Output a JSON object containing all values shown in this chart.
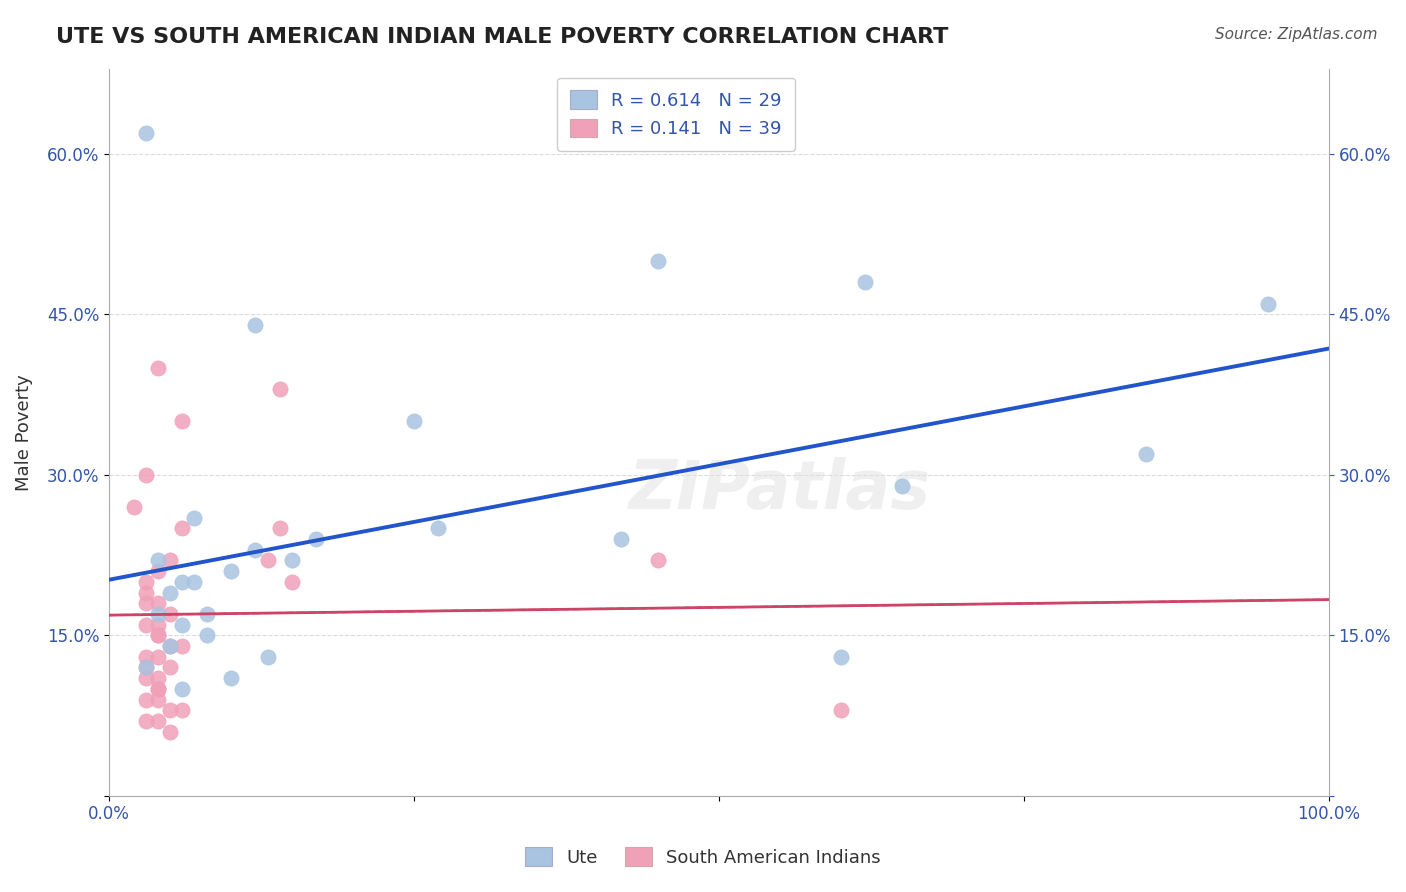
{
  "title": "UTE VS SOUTH AMERICAN INDIAN MALE POVERTY CORRELATION CHART",
  "source": "Source: ZipAtlas.com",
  "xlabel": "",
  "ylabel": "Male Poverty",
  "legend_labels": [
    "Ute",
    "South American Indians"
  ],
  "r_blue": 0.614,
  "n_blue": 29,
  "r_pink": 0.141,
  "n_pink": 39,
  "blue_color": "#a8c4e0",
  "pink_color": "#f0a0b8",
  "blue_line_color": "#2255cc",
  "pink_line_color": "#cc4466",
  "watermark": "ZIPatlas",
  "xlim": [
    0,
    1
  ],
  "ylim": [
    0,
    0.68
  ],
  "yticks": [
    0.0,
    0.15,
    0.3,
    0.45,
    0.6
  ],
  "ytick_labels": [
    "",
    "15.0%",
    "30.0%",
    "45.0%",
    "60.0%"
  ],
  "xticks": [
    0.0,
    0.25,
    0.5,
    0.75,
    1.0
  ],
  "xtick_labels": [
    "0.0%",
    "",
    "",
    "",
    "100.0%"
  ],
  "blue_x": [
    0.03,
    0.45,
    0.12,
    0.07,
    0.62,
    0.17,
    0.07,
    0.85,
    0.25,
    0.04,
    0.06,
    0.15,
    0.1,
    0.05,
    0.04,
    0.06,
    0.08,
    0.12,
    0.27,
    0.6,
    0.08,
    0.05,
    0.03,
    0.1,
    0.42,
    0.13,
    0.06,
    0.65,
    0.95
  ],
  "blue_y": [
    0.62,
    0.5,
    0.44,
    0.26,
    0.48,
    0.24,
    0.2,
    0.32,
    0.35,
    0.22,
    0.2,
    0.22,
    0.21,
    0.19,
    0.17,
    0.16,
    0.15,
    0.23,
    0.25,
    0.13,
    0.17,
    0.14,
    0.12,
    0.11,
    0.24,
    0.13,
    0.1,
    0.29,
    0.46
  ],
  "pink_x": [
    0.04,
    0.14,
    0.06,
    0.03,
    0.02,
    0.06,
    0.05,
    0.04,
    0.03,
    0.03,
    0.03,
    0.04,
    0.05,
    0.04,
    0.03,
    0.04,
    0.04,
    0.06,
    0.14,
    0.05,
    0.03,
    0.04,
    0.03,
    0.05,
    0.04,
    0.03,
    0.04,
    0.15,
    0.13,
    0.04,
    0.03,
    0.04,
    0.45,
    0.6,
    0.06,
    0.05,
    0.04,
    0.03,
    0.05
  ],
  "pink_y": [
    0.4,
    0.38,
    0.35,
    0.3,
    0.27,
    0.25,
    0.22,
    0.21,
    0.2,
    0.19,
    0.18,
    0.18,
    0.17,
    0.16,
    0.16,
    0.15,
    0.15,
    0.14,
    0.25,
    0.14,
    0.13,
    0.13,
    0.12,
    0.12,
    0.11,
    0.11,
    0.1,
    0.2,
    0.22,
    0.1,
    0.09,
    0.09,
    0.22,
    0.08,
    0.08,
    0.08,
    0.07,
    0.07,
    0.06
  ]
}
